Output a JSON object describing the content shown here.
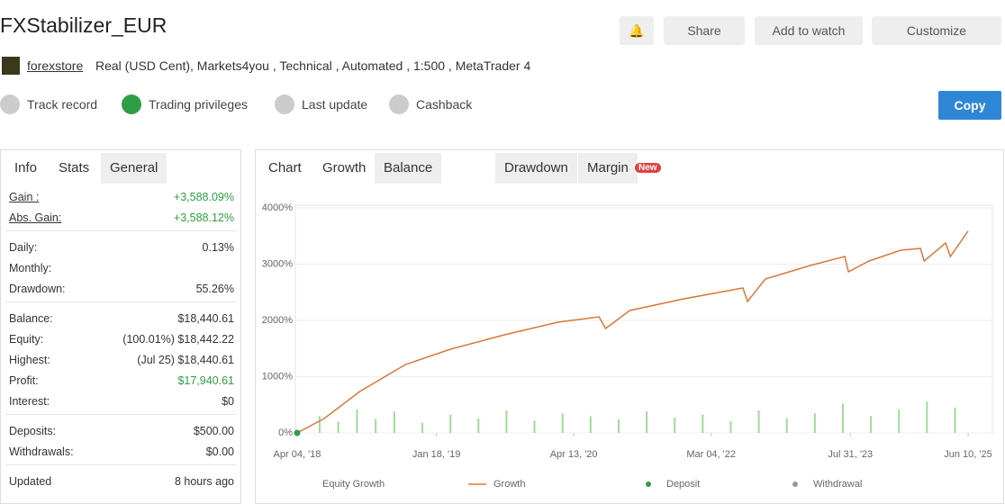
{
  "header": {
    "title": "FXStabilizer_EUR",
    "broker": "forexstore",
    "description": "Real (USD Cent), Markets4you , Technical , Automated , 1:500 , MetaTrader 4",
    "buttons": [
      "Share",
      "Add to watch",
      "Customize"
    ]
  },
  "badges": [
    "Track record",
    "Trading privileges",
    "Last update",
    "Cashback"
  ],
  "copy_button": "Copy",
  "left_tabs": [
    "Info",
    "Stats",
    "General"
  ],
  "stats": [
    [
      {
        "label": "Gain :",
        "value": "+3,588.09%"
      },
      {
        "label": "Abs. Gain:",
        "value": "+3,588.12%"
      }
    ],
    [
      {
        "label": "Daily:",
        "value": "0.13%"
      },
      {
        "label": "Monthly:"
      },
      {
        "label": "Drawdown:",
        "value": "55.26%"
      }
    ],
    [
      {
        "label": "Balance:",
        "value": "$18,440.61"
      },
      {
        "label": "Equity:",
        "value": "(100.01%) $18,442.22"
      },
      {
        "label": "Highest:",
        "value": "(Jul 25) $18,440.61"
      },
      {
        "label": "Profit:",
        "value": "$17,940.61"
      },
      {
        "label": "Interest:",
        "value": "$0"
      }
    ],
    [
      {
        "label": "Deposits:",
        "value": "$500.00"
      },
      {
        "label": "Withdrawals:",
        "value": "$0.00"
      }
    ],
    [
      {
        "label": "Updated",
        "value": "8 hours ago"
      }
    ]
  ],
  "chart_tabs": [
    "Chart",
    "Growth",
    "Balance",
    "Drawdown",
    "Margin"
  ],
  "new_badge": "New",
  "chart_data": {
    "type": "line",
    "xlim": [
      2018.0,
      2025.7
    ],
    "xticks": [
      {
        "value": 2018.26,
        "label": "Apr 04, '18"
      },
      {
        "value": 2019.75,
        "label": "Jan 18, '19"
      },
      {
        "value": 2021.22,
        "label": "Apr 13, '20"
      },
      {
        "value": 2022.69,
        "label": "Mar 04, '22"
      },
      {
        "value": 2024.18,
        "label": "Jul 31, '23"
      },
      {
        "value": 2025.44,
        "label": "Jun 10, '25"
      }
    ],
    "ylim": [
      0,
      4000
    ],
    "yticks": [
      {
        "value": 0,
        "label": "0%"
      },
      {
        "value": 1000,
        "label": "1000%"
      },
      {
        "value": 2000,
        "label": "2000%"
      },
      {
        "value": 3000,
        "label": "3000%"
      },
      {
        "value": 4000,
        "label": "4000%"
      }
    ],
    "grid": true,
    "series": [
      {
        "name": "Equity Growth",
        "color": "#9edb98",
        "style": "spikes",
        "x": [
          2018.5,
          2018.7,
          2018.9,
          2019.1,
          2019.3,
          2019.6,
          2019.9,
          2020.2,
          2020.5,
          2020.8,
          2021.1,
          2021.4,
          2021.7,
          2022.0,
          2022.3,
          2022.6,
          2022.9,
          2023.2,
          2023.5,
          2023.8,
          2024.1,
          2024.4,
          2024.7,
          2025.0,
          2025.3
        ],
        "values": [
          300,
          200,
          420,
          250,
          380,
          180,
          320,
          260,
          400,
          220,
          350,
          300,
          240,
          380,
          270,
          330,
          210,
          400,
          260,
          350,
          520,
          300,
          420,
          560,
          450
        ]
      },
      {
        "name": "Growth",
        "color": "#d9773a",
        "style": "line",
        "x": [
          2018.26,
          2018.55,
          2018.93,
          2019.42,
          2019.9,
          2020.48,
          2021.05,
          2021.49,
          2021.56,
          2021.82,
          2022.4,
          2023.03,
          2023.08,
          2023.27,
          2023.75,
          2024.12,
          2024.16,
          2024.38,
          2024.72,
          2024.93,
          2024.97,
          2025.2,
          2025.25,
          2025.44
        ],
        "values": [
          0,
          256,
          736,
          1216,
          1488,
          1744,
          1968,
          2064,
          1856,
          2176,
          2384,
          2576,
          2336,
          2736,
          2976,
          3136,
          2864,
          3056,
          3248,
          3280,
          3056,
          3376,
          3136,
          3588
        ]
      },
      {
        "name": "Deposit",
        "color": "#2e9e44",
        "style": "dots",
        "x": [
          2018.26
        ],
        "values": [
          0
        ]
      },
      {
        "name": "Withdrawal",
        "color": "#999999",
        "style": "dots",
        "x": [],
        "values": []
      }
    ]
  }
}
